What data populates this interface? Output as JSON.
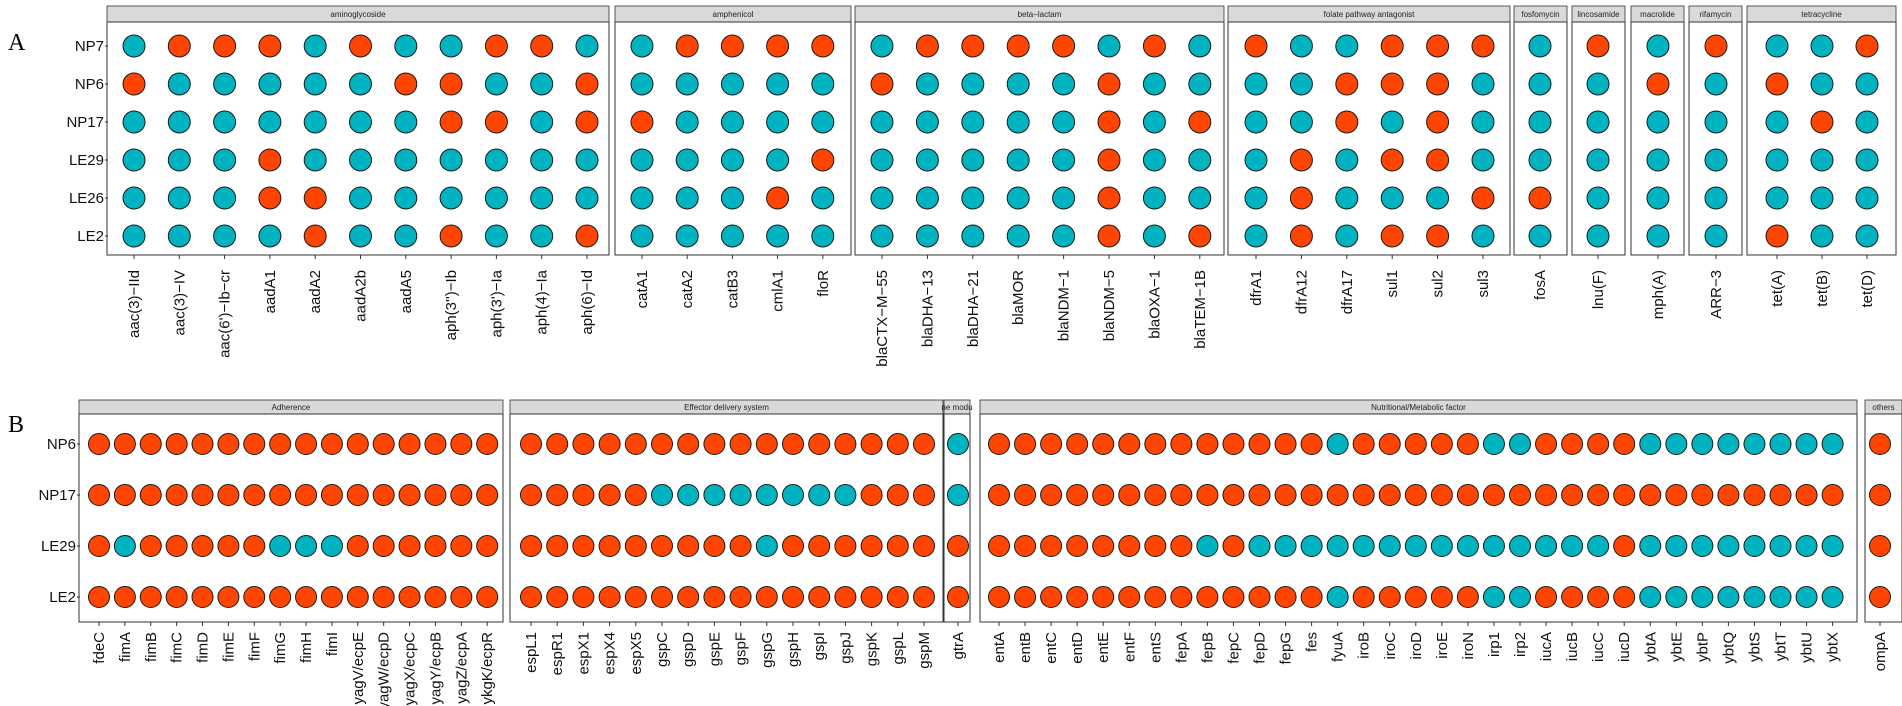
{
  "colors": {
    "present": "#FF4500",
    "absent": "#00B3C0",
    "strip_fill": "#D9D9D9",
    "frame": "#333333"
  },
  "chart_data": [
    {
      "type": "dot-matrix",
      "panel_label": "A",
      "legend_mapping": {
        "1": "present (orange-red)",
        "0": "absent (teal)"
      },
      "rows": [
        "NP7",
        "NP6",
        "NP17",
        "LE29",
        "LE26",
        "LE2"
      ],
      "facets": [
        {
          "label": "aminoglycoside",
          "columns": [
            "aac(3)−IId",
            "aac(3)−IV",
            "aac(6')−Ib−cr",
            "aadA1",
            "aadA2",
            "aadA2b",
            "aadA5",
            "aph(3'')−Ib",
            "aph(3')−Ia",
            "aph(4)−Ia",
            "aph(6)−Id"
          ],
          "values": [
            [
              0,
              1,
              1,
              1,
              0,
              1,
              0,
              0,
              1,
              1,
              0
            ],
            [
              1,
              0,
              0,
              0,
              0,
              0,
              1,
              1,
              0,
              0,
              1
            ],
            [
              0,
              0,
              0,
              0,
              0,
              0,
              0,
              1,
              1,
              0,
              1
            ],
            [
              0,
              0,
              0,
              1,
              0,
              0,
              0,
              0,
              0,
              0,
              0
            ],
            [
              0,
              0,
              0,
              1,
              1,
              0,
              0,
              0,
              0,
              0,
              0
            ],
            [
              0,
              0,
              0,
              0,
              1,
              0,
              0,
              1,
              0,
              0,
              1
            ]
          ]
        },
        {
          "label": "amphenicol",
          "columns": [
            "catA1",
            "catA2",
            "catB3",
            "cmlA1",
            "floR"
          ],
          "values": [
            [
              0,
              1,
              1,
              1,
              1
            ],
            [
              0,
              0,
              0,
              0,
              0
            ],
            [
              1,
              0,
              0,
              0,
              0
            ],
            [
              0,
              0,
              0,
              0,
              1
            ],
            [
              0,
              0,
              0,
              1,
              0
            ],
            [
              0,
              0,
              0,
              0,
              0
            ]
          ]
        },
        {
          "label": "beta−lactam",
          "columns": [
            "blaCTX−M−55",
            "blaDHA−13",
            "blaDHA−21",
            "blaMOR",
            "blaNDM−1",
            "blaNDM−5",
            "blaOXA−1",
            "blaTEM−1B"
          ],
          "values": [
            [
              0,
              1,
              1,
              1,
              1,
              0,
              1,
              0
            ],
            [
              1,
              0,
              0,
              0,
              0,
              1,
              0,
              0
            ],
            [
              0,
              0,
              0,
              0,
              0,
              1,
              0,
              1
            ],
            [
              0,
              0,
              0,
              0,
              0,
              1,
              0,
              0
            ],
            [
              0,
              0,
              0,
              0,
              0,
              1,
              0,
              0
            ],
            [
              0,
              0,
              0,
              0,
              0,
              1,
              0,
              1
            ]
          ]
        },
        {
          "label": "folate pathway antagonist",
          "columns": [
            "dfrA1",
            "dfrA12",
            "dfrA17",
            "sul1",
            "sul2",
            "sul3"
          ],
          "values": [
            [
              1,
              0,
              0,
              1,
              1,
              1
            ],
            [
              0,
              0,
              1,
              1,
              1,
              0
            ],
            [
              0,
              0,
              1,
              0,
              1,
              0
            ],
            [
              0,
              1,
              0,
              1,
              1,
              0
            ],
            [
              0,
              1,
              0,
              0,
              0,
              1
            ],
            [
              0,
              1,
              0,
              1,
              1,
              0
            ]
          ]
        },
        {
          "label": "fosfomycin",
          "columns": [
            "fosA"
          ],
          "values": [
            [
              0
            ],
            [
              0
            ],
            [
              0
            ],
            [
              0
            ],
            [
              1
            ],
            [
              0
            ]
          ]
        },
        {
          "label": "lincosamide",
          "columns": [
            "lnu(F)"
          ],
          "values": [
            [
              1
            ],
            [
              0
            ],
            [
              0
            ],
            [
              0
            ],
            [
              0
            ],
            [
              0
            ]
          ]
        },
        {
          "label": "macrolide",
          "columns": [
            "mph(A)"
          ],
          "values": [
            [
              0
            ],
            [
              1
            ],
            [
              0
            ],
            [
              0
            ],
            [
              0
            ],
            [
              0
            ]
          ]
        },
        {
          "label": "rifamycin",
          "columns": [
            "ARR−3"
          ],
          "values": [
            [
              1
            ],
            [
              0
            ],
            [
              0
            ],
            [
              0
            ],
            [
              0
            ],
            [
              0
            ]
          ]
        },
        {
          "label": "tetracycline",
          "columns": [
            "tet(A)",
            "tet(B)",
            "tet(D)"
          ],
          "values": [
            [
              0,
              0,
              1
            ],
            [
              1,
              0,
              0
            ],
            [
              0,
              1,
              0
            ],
            [
              0,
              0,
              0
            ],
            [
              0,
              0,
              0
            ],
            [
              1,
              0,
              0
            ]
          ]
        }
      ]
    },
    {
      "type": "dot-matrix",
      "panel_label": "B",
      "legend_mapping": {
        "1": "present (orange-red)",
        "0": "absent (teal)"
      },
      "rows": [
        "NP6",
        "NP17",
        "LE29",
        "LE2"
      ],
      "facets": [
        {
          "label": "Adherence",
          "columns": [
            "fdeC",
            "fimA",
            "fimB",
            "fimC",
            "fimD",
            "fimE",
            "fimF",
            "fimG",
            "fimH",
            "fimI",
            "yagV/ecpE",
            "yagW/ecpD",
            "yagX/ecpC",
            "yagY/ecpB",
            "yagZ/ecpA",
            "ykgK/ecpR"
          ],
          "values": [
            [
              1,
              1,
              1,
              1,
              1,
              1,
              1,
              1,
              1,
              1,
              1,
              1,
              1,
              1,
              1,
              1
            ],
            [
              1,
              1,
              1,
              1,
              1,
              1,
              1,
              1,
              1,
              1,
              1,
              1,
              1,
              1,
              1,
              1
            ],
            [
              1,
              0,
              1,
              1,
              1,
              1,
              1,
              0,
              0,
              0,
              1,
              1,
              1,
              1,
              1,
              1
            ],
            [
              1,
              1,
              1,
              1,
              1,
              1,
              1,
              1,
              1,
              1,
              1,
              1,
              1,
              1,
              1,
              1
            ]
          ]
        },
        {
          "label": "Effector delivery system",
          "columns": [
            "espL1",
            "espR1",
            "espX1",
            "espX4",
            "espX5",
            "gspC",
            "gspD",
            "gspE",
            "gspF",
            "gspG",
            "gspH",
            "gspI",
            "gspJ",
            "gspK",
            "gspL",
            "gspM"
          ],
          "values": [
            [
              1,
              1,
              1,
              1,
              1,
              1,
              1,
              1,
              1,
              1,
              1,
              1,
              1,
              1,
              1,
              1
            ],
            [
              1,
              1,
              1,
              1,
              1,
              0,
              0,
              0,
              0,
              0,
              0,
              0,
              0,
              1,
              1,
              1
            ],
            [
              1,
              1,
              1,
              1,
              1,
              1,
              1,
              1,
              1,
              0,
              1,
              1,
              1,
              1,
              1,
              1
            ],
            [
              1,
              1,
              1,
              1,
              1,
              1,
              1,
              1,
              1,
              1,
              1,
              1,
              1,
              1,
              1,
              1
            ]
          ]
        },
        {
          "label": "ne modu",
          "columns": [
            "gtrA"
          ],
          "values": [
            [
              0
            ],
            [
              0
            ],
            [
              1
            ],
            [
              1
            ]
          ]
        },
        {
          "label": "Nutritional/Metabolic factor",
          "columns": [
            "entA",
            "entB",
            "entC",
            "entD",
            "entE",
            "entF",
            "entS",
            "fepA",
            "fepB",
            "fepC",
            "fepD",
            "fepG",
            "fes",
            "fyuA",
            "iroB",
            "iroC",
            "iroD",
            "iroE",
            "iroN",
            "irp1",
            "irp2",
            "iucA",
            "iucB",
            "iucC",
            "iucD",
            "ybtA",
            "ybtE",
            "ybtP",
            "ybtQ",
            "ybtS",
            "ybtT",
            "ybtU",
            "ybtX"
          ],
          "values": [
            [
              1,
              1,
              1,
              1,
              1,
              1,
              1,
              1,
              1,
              1,
              1,
              1,
              1,
              0,
              1,
              1,
              1,
              1,
              1,
              0,
              0,
              1,
              1,
              1,
              1,
              0,
              0,
              0,
              0,
              0,
              0,
              0,
              0
            ],
            [
              1,
              1,
              1,
              1,
              1,
              1,
              1,
              1,
              1,
              1,
              1,
              1,
              1,
              1,
              1,
              1,
              1,
              1,
              1,
              1,
              1,
              1,
              1,
              1,
              1,
              1,
              1,
              1,
              1,
              1,
              1,
              1,
              1
            ],
            [
              1,
              1,
              1,
              1,
              1,
              1,
              1,
              1,
              0,
              1,
              0,
              0,
              0,
              0,
              0,
              0,
              0,
              0,
              0,
              0,
              0,
              0,
              0,
              0,
              1,
              0,
              0,
              0,
              0,
              0,
              0,
              0,
              0
            ],
            [
              1,
              1,
              1,
              1,
              1,
              1,
              1,
              1,
              1,
              1,
              1,
              1,
              1,
              0,
              1,
              1,
              1,
              1,
              1,
              0,
              0,
              1,
              1,
              1,
              1,
              0,
              0,
              0,
              0,
              0,
              0,
              0,
              0
            ]
          ]
        },
        {
          "label": "others",
          "columns": [
            "ompA"
          ],
          "values": [
            [
              1
            ],
            [
              1
            ],
            [
              1
            ],
            [
              1
            ]
          ]
        }
      ]
    }
  ]
}
